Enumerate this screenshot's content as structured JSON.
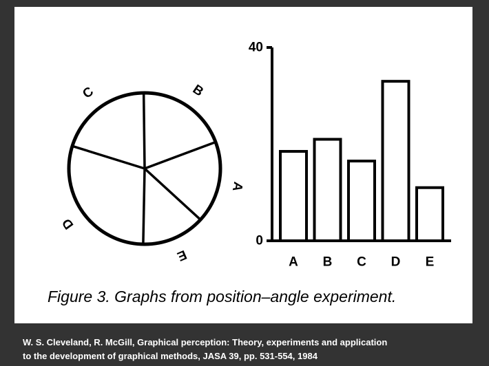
{
  "chart_data": [
    {
      "type": "pie",
      "categories": [
        "A",
        "B",
        "C",
        "D",
        "E"
      ],
      "values": [
        17.5,
        19.5,
        20.0,
        29.5,
        13.5
      ],
      "title": "",
      "colors": {
        "stroke": "#000000",
        "fill": "#ffffff"
      }
    },
    {
      "type": "bar",
      "categories": [
        "A",
        "B",
        "C",
        "D",
        "E"
      ],
      "values": [
        18.5,
        21.0,
        16.5,
        33.0,
        11.0
      ],
      "title": "",
      "xlabel": "",
      "ylabel": "",
      "ylim": [
        0,
        40
      ],
      "yticks": [
        "0",
        "40"
      ],
      "grid": false,
      "colors": {
        "stroke": "#000000",
        "fill": "#ffffff"
      }
    }
  ],
  "caption": "Figure 3. Graphs from position–angle experiment.",
  "citation": {
    "line1": "W. S. Cleveland, R. McGill, Graphical perception: Theory, experiments and application",
    "line2": "to the development of graphical methods, JASA 39, pp. 531-554, 1984"
  },
  "colors": {
    "background": "#333333",
    "panel": "#ffffff",
    "ink": "#000000",
    "citation_text": "#ffffff"
  }
}
